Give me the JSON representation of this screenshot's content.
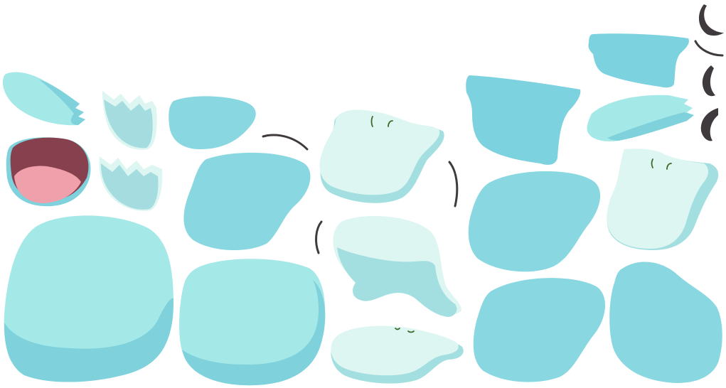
{
  "sheet": {
    "title": "",
    "colors": {
      "body_light": "#A5E8E8",
      "body_shadow": "#7FD2DC",
      "cap_fill": "#7CD2DF",
      "head_mid": "#89D8E1",
      "belly_pale": "#DDF6F1",
      "belly_shade": "#A3DFE0",
      "fin_pale": "#A4DCE0",
      "fin_outline": "#DDF6F1",
      "mouth_dark": "#86404E",
      "tongue": "#EFA0AA",
      "eye_green": "#3C6B29",
      "line_dark": "#3F3A3D"
    },
    "parts": [
      {
        "name": "tail-fin-left",
        "icon": "fin-icon"
      },
      {
        "name": "crown-fin-top",
        "icon": "crown-fin-icon"
      },
      {
        "name": "crown-fin-bottom",
        "icon": "crown-fin-icon"
      },
      {
        "name": "open-mouth",
        "icon": "mouth-icon"
      },
      {
        "name": "head-small",
        "icon": "blob-icon"
      },
      {
        "name": "head-large",
        "icon": "blob-icon"
      },
      {
        "name": "body-big-left",
        "icon": "blob-icon"
      },
      {
        "name": "body-round",
        "icon": "blob-icon"
      },
      {
        "name": "belly-top",
        "icon": "belly-icon"
      },
      {
        "name": "belly-mid",
        "icon": "belly-icon"
      },
      {
        "name": "belly-bottom",
        "icon": "belly-icon"
      },
      {
        "name": "hat-large",
        "icon": "hat-icon"
      },
      {
        "name": "hat-small",
        "icon": "hat-icon"
      },
      {
        "name": "tail-fin-right",
        "icon": "fin-icon"
      },
      {
        "name": "head-right",
        "icon": "blob-icon"
      },
      {
        "name": "body-lower-mid",
        "icon": "blob-icon"
      },
      {
        "name": "body-lower-right",
        "icon": "blob-icon"
      },
      {
        "name": "belly-right",
        "icon": "belly-icon"
      },
      {
        "name": "arc-strokes",
        "icon": "arc-icon"
      }
    ]
  }
}
